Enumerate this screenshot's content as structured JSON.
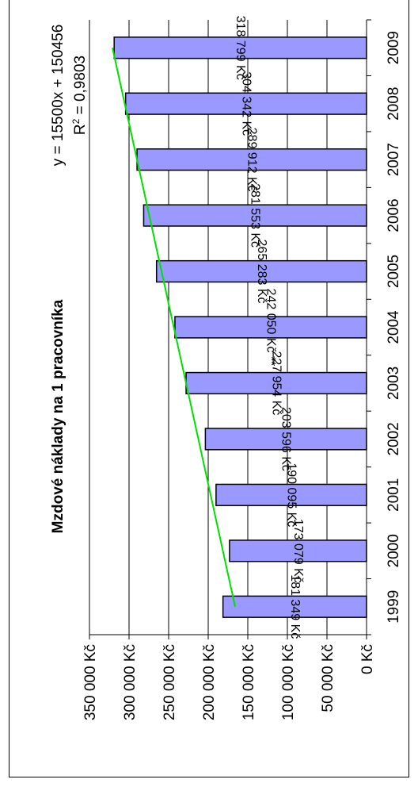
{
  "chart_data": {
    "type": "bar",
    "title": "Mzdové náklady na 1 pracovníka",
    "categories": [
      "1999",
      "2000",
      "2001",
      "2002",
      "2003",
      "2004",
      "2005",
      "2006",
      "2007",
      "2008",
      "2009"
    ],
    "values": [
      181349,
      173079,
      190095,
      203596,
      227954,
      242050,
      265283,
      281553,
      289912,
      304342,
      318799
    ],
    "data_labels": [
      "181 349 Kč",
      "173 079 Kč",
      "190 095 Kč",
      "203 596 Kč",
      "227 954 Kč",
      "242 050 Kč **",
      "265 283 Kč",
      "281 553 Kč",
      "289 912 Kč",
      "304 342 Kč",
      "318 799 Kč"
    ],
    "ylim": [
      0,
      350000
    ],
    "y_ticks": [
      0,
      50000,
      100000,
      150000,
      200000,
      250000,
      300000,
      350000
    ],
    "y_tick_labels": [
      "0 Kč",
      "50 000 Kč",
      "100 000 Kč",
      "150 000 Kč",
      "200 000 Kč",
      "250 000 Kč",
      "300 000 Kč",
      "350 000 Kč"
    ],
    "xlabel": "",
    "ylabel": "",
    "grid": true,
    "orientation": "rotated-90-ccw",
    "trendline": {
      "type": "linear",
      "slope": 15500,
      "intercept": 150456,
      "equation": "y = 15500x + 150456",
      "r2_prefix": "R",
      "r2_sup": "2",
      "r2_value": " = 0,9803",
      "color": "#00e000"
    },
    "bar_color": "#9999ff",
    "bar_border": "#000000"
  }
}
